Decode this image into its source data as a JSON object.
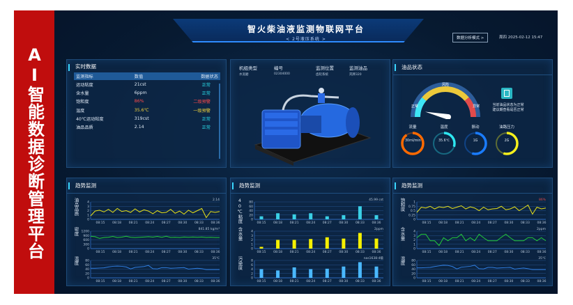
{
  "banner": {
    "text": "AI智能数据诊断管理平台"
  },
  "header": {
    "title": "智火柴油液监测物联网平台",
    "subtitle": "< 2号液压系统 >",
    "mode_button": "数据分析模式 >",
    "datetime": "周四 2025-02-12 15:47"
  },
  "realtime": {
    "title": "实时数据",
    "columns": [
      "监测指标",
      "数值",
      "数据状态"
    ],
    "rows": [
      {
        "name": "运动粘度",
        "value": "21cst",
        "status": "正常",
        "level": "ok"
      },
      {
        "name": "含水量",
        "value": "6ppm",
        "status": "正常",
        "level": "ok"
      },
      {
        "name": "饱和度",
        "value": "86%",
        "status": "二级预警",
        "level": "red"
      },
      {
        "name": "温度",
        "value": "35.6℃",
        "status": "一级预警",
        "level": "yel"
      },
      {
        "name": "40℃运动粘度",
        "value": "319cst",
        "status": "正常",
        "level": "ok"
      },
      {
        "name": "油品品质",
        "value": "2.14",
        "status": "正常",
        "level": "ok"
      }
    ]
  },
  "machine": {
    "fields": [
      {
        "label": "机组类型",
        "value": "水泥磨"
      },
      {
        "label": "编号",
        "value": "02304000"
      },
      {
        "label": "监测位置",
        "value": "齿轮系统"
      },
      {
        "label": "监测油品",
        "value": "壳牌320"
      }
    ]
  },
  "oil_status": {
    "title": "油品状态",
    "gauge": {
      "segments": [
        "正常",
        "风险",
        "异常"
      ],
      "colors": [
        "#3ee6f5",
        "#ecc93a",
        "#e24b4b"
      ],
      "value": 0.08
    },
    "message": [
      "当前油品状态为正常",
      "建议期查看是否正常"
    ],
    "rings": [
      {
        "label": "流量",
        "value": "30ml/min",
        "fill": 0.9,
        "color": "#ff6a00"
      },
      {
        "label": "温度",
        "value": "35.6℃",
        "fill": 0.3,
        "color": "#2ee6f0"
      },
      {
        "label": "振动",
        "value": "1G",
        "fill": 0.55,
        "color": "#1a7cff"
      },
      {
        "label": "油路压力",
        "value": "2G",
        "fill": 0.55,
        "color": "#f6f01c"
      }
    ]
  },
  "x_ticks": [
    "08:15",
    "08:18",
    "08:21",
    "08:24",
    "08:27",
    "08:30",
    "08:33",
    "08:36"
  ],
  "chart_data": [
    {
      "panel": "趋势监测",
      "type": "line",
      "charts": [
        {
          "label": "油品品质",
          "annotation": "2.14",
          "ylim": [
            0,
            4
          ],
          "yticks": [
            0,
            1,
            2,
            3,
            4
          ],
          "color": "#e8e21a",
          "values": [
            0.8,
            1.9,
            2.1,
            1.7,
            2.3,
            1.6,
            2.5,
            1.8,
            2.0,
            1.6,
            2.4,
            1.7,
            2.2,
            1.9,
            1.3,
            2.0,
            1.5,
            1.6,
            2.3,
            1.4,
            1.9,
            1.2,
            2.1,
            1.5,
            2.0,
            2.5,
            0.4,
            1.8,
            1.6,
            1.8
          ]
        },
        {
          "label": "密度",
          "annotation": "841.85 kg/m³",
          "ylim": [
            0,
            1200
          ],
          "yticks": [
            0,
            300,
            600,
            900,
            1200
          ],
          "color": "#22c93a",
          "values": [
            850,
            820,
            700,
            760,
            780,
            840,
            760,
            790,
            850,
            780,
            760,
            780,
            800,
            820,
            790,
            840,
            780,
            850,
            770,
            780,
            760,
            800,
            780,
            800,
            780,
            800,
            770,
            780,
            760,
            760
          ]
        },
        {
          "label": "温度",
          "annotation": "35℃",
          "ylim": [
            0,
            80
          ],
          "yticks": [
            0,
            20,
            40,
            60,
            80
          ],
          "color": "#2f7de0",
          "values": [
            44,
            44,
            45,
            46,
            50,
            53,
            54,
            53,
            50,
            41,
            48,
            50,
            52,
            57,
            42,
            41,
            47,
            47,
            44,
            45,
            46,
            47,
            40,
            42,
            44,
            42,
            38,
            38,
            38,
            38
          ]
        }
      ]
    },
    {
      "panel": "趋势监测",
      "type": "bar",
      "charts": [
        {
          "label": "40℃粘度",
          "annotation": "45.99 cst",
          "ylim": [
            0,
            80
          ],
          "yticks": [
            0,
            20,
            40,
            60,
            80
          ],
          "color": "#3ad0e6",
          "values": [
            14,
            28,
            23,
            28,
            14,
            19,
            60,
            19
          ]
        },
        {
          "label": "含水量",
          "annotation": "2ppm",
          "ylim": [
            0,
            4
          ],
          "yticks": [
            0,
            1,
            2,
            3,
            4
          ],
          "color": "#f5f000",
          "values": [
            0.4,
            2.0,
            2.0,
            2.2,
            2.6,
            2.3,
            3.6,
            2.3
          ]
        },
        {
          "label": "污染度",
          "annotation": "nas1638:4级",
          "ylim": [
            0,
            8
          ],
          "yticks": [
            0,
            2,
            4,
            6,
            8
          ],
          "color": "#4ab8ff",
          "values": [
            4.0,
            3.4,
            4.8,
            4.0,
            4.2,
            5.2,
            7.2,
            5.2
          ]
        }
      ]
    },
    {
      "panel": "趋势监测",
      "type": "line",
      "charts": [
        {
          "label": "饱和度",
          "annotation": "86%",
          "ylim": [
            0,
            1
          ],
          "yticks": [
            0,
            0.25,
            0.5,
            0.75,
            1
          ],
          "color": "#e8e21a",
          "annColor": "#e24b4b",
          "values": [
            0.4,
            0.7,
            0.65,
            0.75,
            0.6,
            0.72,
            0.68,
            0.75,
            0.62,
            0.7,
            0.78,
            0.6,
            0.72,
            0.65,
            0.5,
            0.7,
            0.55,
            0.6,
            0.62,
            0.75,
            0.55,
            0.6,
            0.72,
            0.5,
            0.65,
            0.82,
            0.3,
            0.7,
            0.6,
            0.65
          ]
        },
        {
          "label": "含水量",
          "annotation": "2ppm",
          "ylim": [
            0,
            4
          ],
          "yticks": [
            0,
            1,
            2,
            3,
            4
          ],
          "color": "#22c93a",
          "values": [
            2.5,
            3.3,
            3.3,
            1.8,
            1.8,
            0.7,
            2.5,
            1.8,
            2.5,
            2.5,
            3.3,
            1.8,
            2.5,
            1.8,
            3.3,
            2.5,
            1.8,
            1.8,
            1.8,
            2.6,
            3.3,
            2.5,
            1.8,
            1.8,
            1.8,
            2.5,
            2.5,
            1.8,
            2.5,
            1.8
          ]
        },
        {
          "label": "温度",
          "annotation": "35℃",
          "ylim": [
            0,
            80
          ],
          "yticks": [
            0,
            20,
            40,
            60,
            80
          ],
          "color": "#2f7de0",
          "values": [
            46,
            46,
            47,
            48,
            52,
            55,
            58,
            57,
            52,
            41,
            49,
            51,
            53,
            58,
            42,
            41,
            48,
            48,
            45,
            46,
            47,
            48,
            40,
            43,
            45,
            42,
            38,
            38,
            38,
            38
          ]
        }
      ]
    }
  ]
}
